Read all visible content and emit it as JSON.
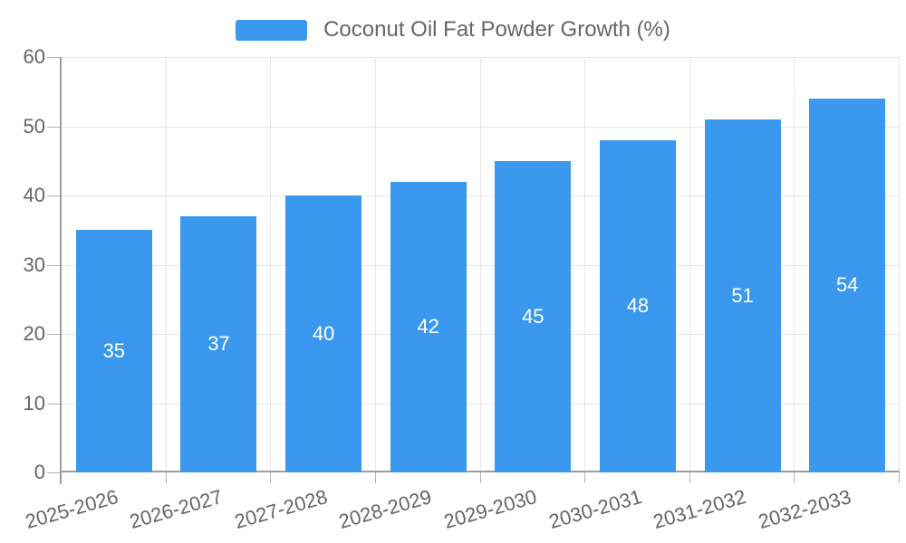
{
  "legend": {
    "label": "Coconut Oil Fat Powder Growth (%)"
  },
  "chart_data": {
    "type": "bar",
    "title": "Coconut Oil Fat Powder Growth (%)",
    "series_name": "Coconut Oil Fat Powder Growth (%)",
    "categories": [
      "2025-2026",
      "2026-2027",
      "2027-2028",
      "2028-2029",
      "2029-2030",
      "2030-2031",
      "2031-2032",
      "2032-2033"
    ],
    "values": [
      35,
      37,
      40,
      42,
      45,
      48,
      51,
      54
    ],
    "xlabel": "",
    "ylabel": "",
    "ylim": [
      0,
      60
    ],
    "yticks": [
      0,
      10,
      20,
      30,
      40,
      50,
      60
    ],
    "grid": true,
    "legend_position": "top-center",
    "bar_color": "#3a99ee",
    "bar_label_color": "#ffffff",
    "axis_text_color": "#666666",
    "grid_color": "#e6e6e6",
    "axis_line_color": "#9e9e9e",
    "tick_color": "#b3b3b3",
    "x_label_rotation_deg": -16
  }
}
